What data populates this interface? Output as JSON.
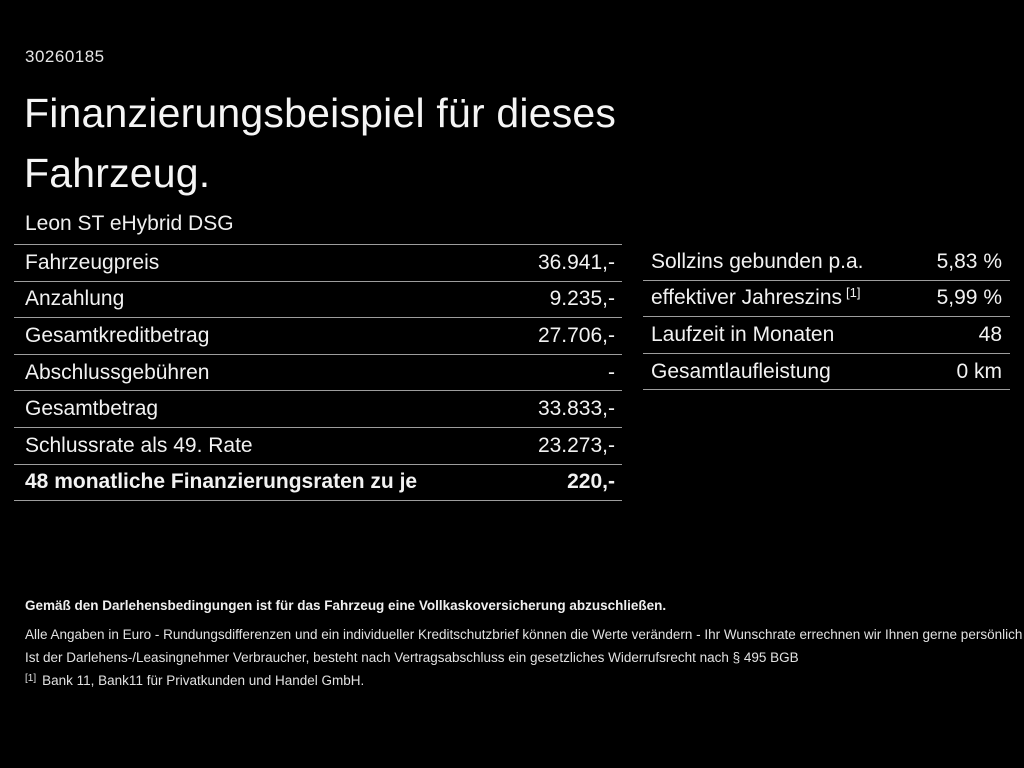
{
  "page": {
    "doc_id": "30260185",
    "title_line1": "Finanzierungsbeispiel für dieses",
    "title_line2": "Fahrzeug.",
    "vehicle": "Leon ST eHybrid DSG"
  },
  "finance_table": {
    "rows": [
      {
        "label": "Fahrzeugpreis",
        "value": "36.941,-"
      },
      {
        "label": "Anzahlung",
        "value": "9.235,-"
      },
      {
        "label": "Gesamtkreditbetrag",
        "value": "27.706,-"
      },
      {
        "label": "Abschlussgebühren",
        "value": "-"
      },
      {
        "label": "Gesamtbetrag",
        "value": "33.833,-"
      },
      {
        "label": "Schlussrate als 49. Rate",
        "value": "23.273,-"
      },
      {
        "label": "48 monatliche Finanzierungsraten zu je",
        "value": "220,-"
      }
    ]
  },
  "conditions_table": {
    "rows": [
      {
        "label": "Sollzins gebunden p.a.",
        "value": "5,83 %"
      },
      {
        "label": "effektiver Jahreszins",
        "sup": "[1]",
        "value": "5,99 %"
      },
      {
        "label": "Laufzeit in Monaten",
        "value": "48"
      },
      {
        "label": "Gesamtlaufleistung",
        "value": "0 km"
      }
    ]
  },
  "footnotes": {
    "insurance_note": "Gemäß den Darlehensbedingungen ist für das Fahrzeug eine Vollkaskoversicherung abzuschließen.",
    "note1": "Alle Angaben in Euro - Rundungsdifferenzen und ein individueller Kreditschutzbrief können die Werte verändern - Ihr Wunschrate errechnen wir Ihnen gerne persönlich",
    "note2": "Ist der Darlehens-/Leasingnehmer Verbraucher, besteht nach Vertragsabschluss ein gesetzliches Widerrufsrecht nach § 495 BGB",
    "ref_marker": "[1]",
    "ref_text": "Bank 11, Bank11 für Privatkunden und Handel GmbH."
  },
  "colors": {
    "background": "#000000",
    "text": "#f2f2f2",
    "divider": "#9d9d9d"
  }
}
